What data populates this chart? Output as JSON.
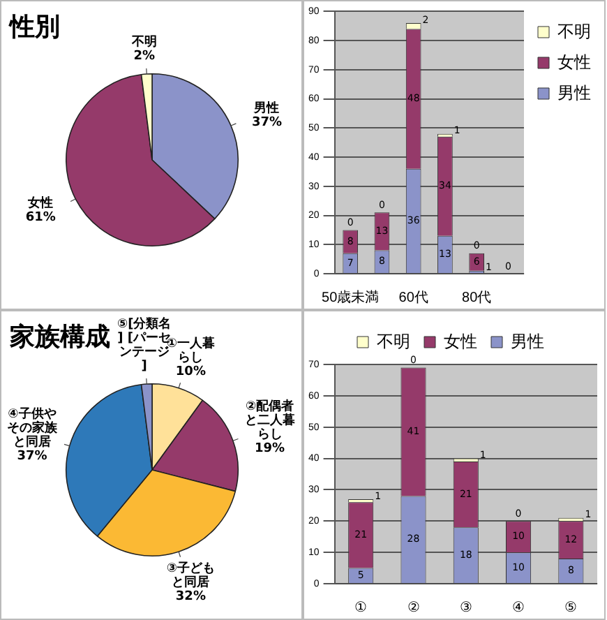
{
  "chart_data": [
    {
      "type": "pie",
      "title": "性別",
      "categories": [
        "男性",
        "女性",
        "不明"
      ],
      "values": [
        37,
        61,
        2
      ],
      "colors": [
        "#8b93c9",
        "#953a6a",
        "#ffffcc"
      ],
      "value_labels": [
        "37%",
        "61%",
        "2%"
      ]
    },
    {
      "type": "bar",
      "stacked": true,
      "categories": [
        "50歳未満",
        null,
        "60代",
        null,
        "80代",
        null
      ],
      "series": [
        {
          "name": "男性",
          "color": "#8b93c9",
          "values": [
            7,
            8,
            36,
            13,
            1,
            0
          ],
          "value_labels": [
            "7",
            "8",
            "36",
            "13",
            "1",
            null
          ]
        },
        {
          "name": "女性",
          "color": "#953a6a",
          "values": [
            8,
            13,
            48,
            34,
            6,
            0
          ],
          "value_labels": [
            "8",
            "13",
            "48",
            "34",
            "6",
            null
          ]
        },
        {
          "name": "不明",
          "color": "#ffffcc",
          "values": [
            0,
            0,
            2,
            1,
            0,
            0
          ],
          "value_labels": [
            "0",
            "0",
            "2",
            "1",
            "0",
            "0"
          ]
        }
      ],
      "ylim": [
        0,
        90
      ],
      "yticks": [
        0,
        10,
        20,
        30,
        40,
        50,
        60,
        70,
        80,
        90
      ],
      "grid": "y",
      "legend": "top right"
    },
    {
      "type": "pie",
      "title": "家族構成",
      "categories": [
        "①一人暮らし",
        "②配偶者と二人暮らし",
        "③子どもと同居",
        "④子供やその家族と同居",
        "⑤[分類名] [パーセンテージ]"
      ],
      "values": [
        10,
        19,
        32,
        37,
        2
      ],
      "colors": [
        "#ffe199",
        "#953a6a",
        "#fbb934",
        "#2e79b9",
        "#8b93c9"
      ],
      "value_labels": [
        "10%",
        "19%",
        "32%",
        "37%",
        null
      ]
    },
    {
      "type": "bar",
      "stacked": true,
      "categories": [
        "①",
        "②",
        "③",
        "④",
        "⑤"
      ],
      "series": [
        {
          "name": "男性",
          "color": "#8b93c9",
          "values": [
            5,
            28,
            18,
            10,
            8
          ],
          "value_labels": [
            "5",
            "28",
            "18",
            "10",
            "8"
          ]
        },
        {
          "name": "女性",
          "color": "#953a6a",
          "values": [
            21,
            41,
            21,
            10,
            12
          ],
          "value_labels": [
            "21",
            "41",
            "21",
            "10",
            "12"
          ]
        },
        {
          "name": "不明",
          "color": "#ffffcc",
          "values": [
            1,
            0,
            1,
            0,
            1
          ],
          "value_labels": [
            "1",
            "0",
            "1",
            "0",
            "1"
          ]
        }
      ],
      "ylim": [
        0,
        70
      ],
      "yticks": [
        0,
        10,
        20,
        30,
        40,
        50,
        60,
        70
      ],
      "grid": "y",
      "legend": "top"
    }
  ]
}
